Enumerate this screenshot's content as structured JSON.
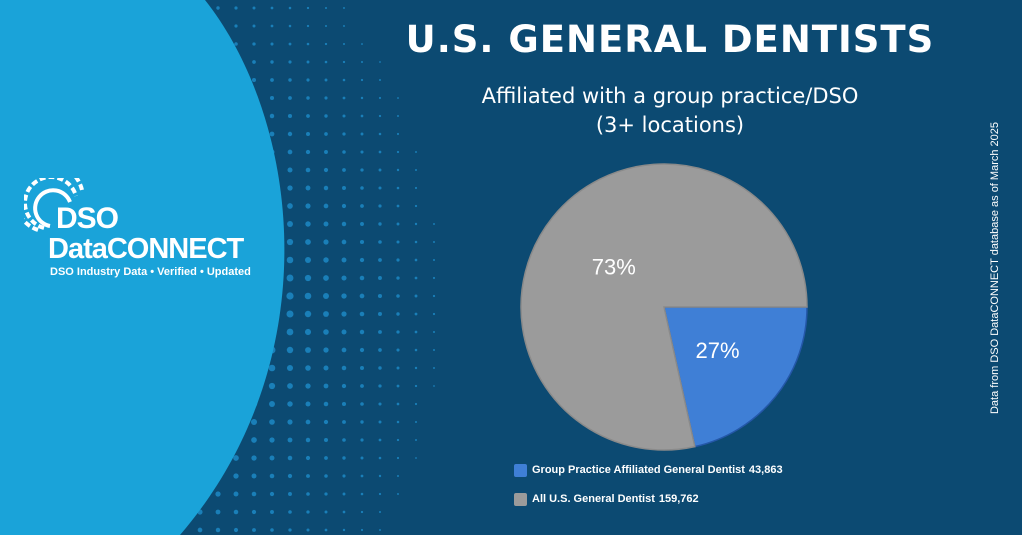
{
  "title": "U.S. GENERAL DENTISTS",
  "subtitle_line1": "Affiliated with a group practice/DSO",
  "subtitle_line2": "(3+ locations)",
  "source_note": "Data from DSO DataCONNECT database as of March 2025",
  "logo": {
    "line1": "DSO",
    "line2": "DataCONNECT",
    "tagline": "DSO Industry Data • Verified • Updated"
  },
  "colors": {
    "background": "#0c4a72",
    "panel": "#1aa3d9",
    "dots": "#1a7fb8",
    "slice_group": "#3f7fd6",
    "slice_all": "#9b9b9b"
  },
  "chart_data": {
    "type": "pie",
    "title": "U.S. GENERAL DENTISTS",
    "subtitle": "Affiliated with a group practice/DSO (3+ locations)",
    "slices": [
      {
        "label": "Group Practice Affiliated General Dentist",
        "value": 43863,
        "value_label": "43,863",
        "percent": 27,
        "percent_label": "27%",
        "color": "#3f7fd6"
      },
      {
        "label": "All U.S. General Dentist",
        "value": 159762,
        "value_label": "159,762",
        "percent": 73,
        "percent_label": "73%",
        "color": "#9b9b9b"
      }
    ],
    "legend_position": "bottom",
    "start_angle_deg": 90,
    "direction": "clockwise"
  }
}
